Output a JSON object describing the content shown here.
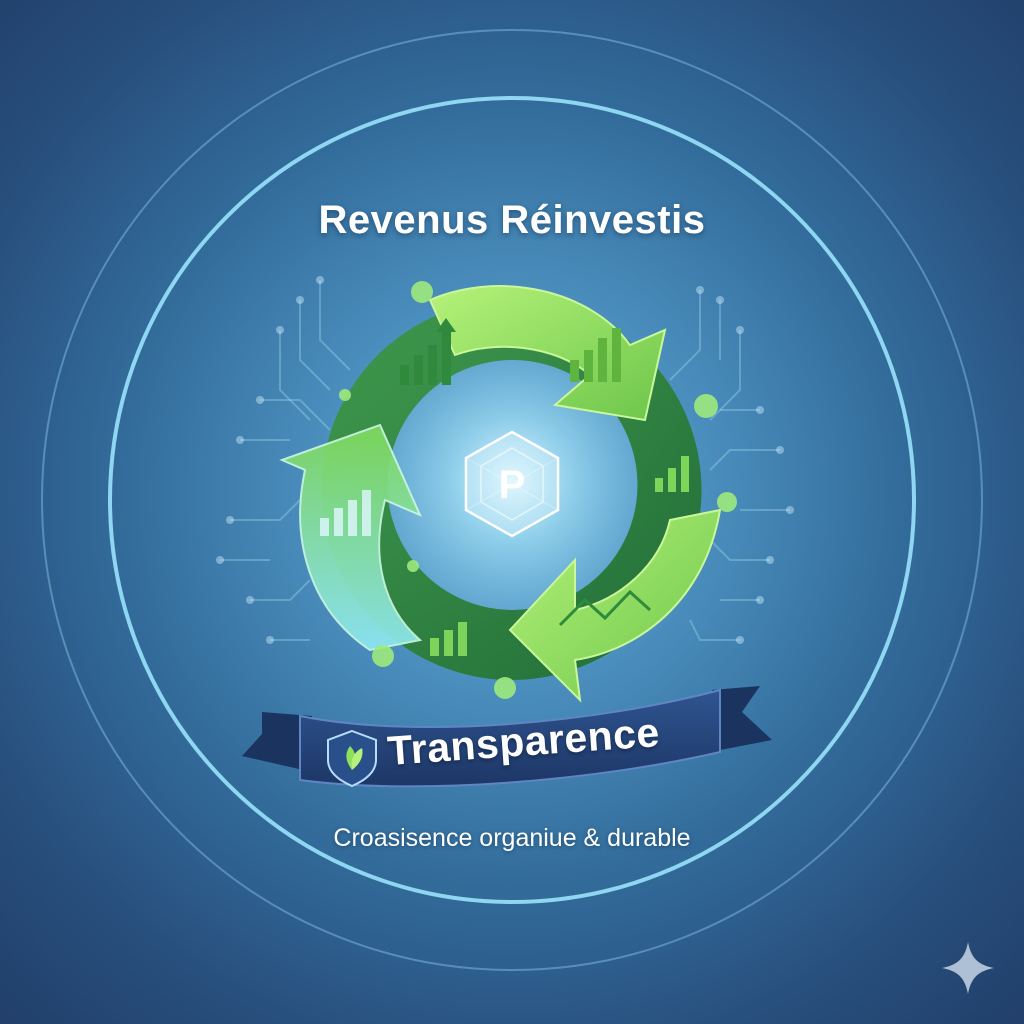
{
  "title": "Revenus Réinvestis",
  "center_logo": {
    "letter": "P",
    "icon": "hexagon-crystal-logo-icon"
  },
  "banner": {
    "label": "Transparence",
    "icon": "shield-leaf-icon"
  },
  "subtitle": "Croasisence organiue & durable",
  "corner_icon": "sparkle-icon",
  "colors": {
    "background_dark": "#213f6a",
    "background_light": "#6fb6dd",
    "ring": "#8fd6f2",
    "arrow_dark_green": "#2e7d3a",
    "arrow_light_green": "#8fe05c",
    "banner_navy": "#233f74"
  }
}
